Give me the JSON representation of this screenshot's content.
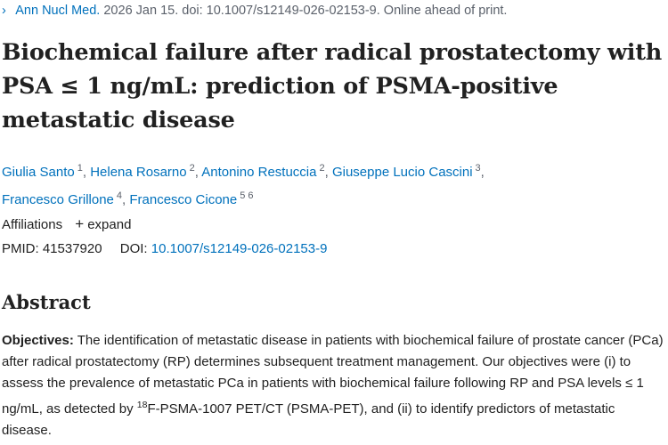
{
  "citation": {
    "chevron": "›",
    "journal": "Ann Nucl Med.",
    "details": " 2026 Jan 15. doi: 10.1007/s12149-026-02153-9. Online ahead of print."
  },
  "article": {
    "title": "Biochemical failure after radical prostatectomy with PSA ≤ 1 ng/mL: prediction of PSMA-positive metastatic disease"
  },
  "authors": [
    {
      "name": "Giulia Santo",
      "aff": "1"
    },
    {
      "name": "Helena Rosarno",
      "aff": "2"
    },
    {
      "name": "Antonino Restuccia",
      "aff": "2"
    },
    {
      "name": "Giuseppe Lucio Cascini",
      "aff": "3"
    },
    {
      "name": "Francesco Grillone",
      "aff": "4"
    },
    {
      "name": "Francesco Cicone",
      "aff": "5 6"
    }
  ],
  "affiliations": {
    "label": "Affiliations",
    "plus": "+",
    "expand": "expand"
  },
  "identifiers": {
    "pmid_label": "PMID:",
    "pmid": "41537920",
    "doi_label": "DOI:",
    "doi": "10.1007/s12149-026-02153-9"
  },
  "abstract": {
    "heading": "Abstract",
    "objectives_label": "Objectives:",
    "text_part1": " The identification of metastatic disease in patients with biochemical failure of prostate cancer (PCa) after radical prostatectomy (RP) determines subsequent treatment management. Our objectives were (i) to assess the prevalence of metastatic PCa in patients with biochemical failure following RP and PSA levels ≤ 1 ng/mL, as detected by ",
    "isotope_mass": "18",
    "text_part2": "F-PSMA-1007 PET/CT (PSMA-PET), and (ii) to identify predictors of metastatic disease."
  },
  "colors": {
    "link": "#0071bc",
    "text": "#212121",
    "muted": "#5b616b"
  }
}
